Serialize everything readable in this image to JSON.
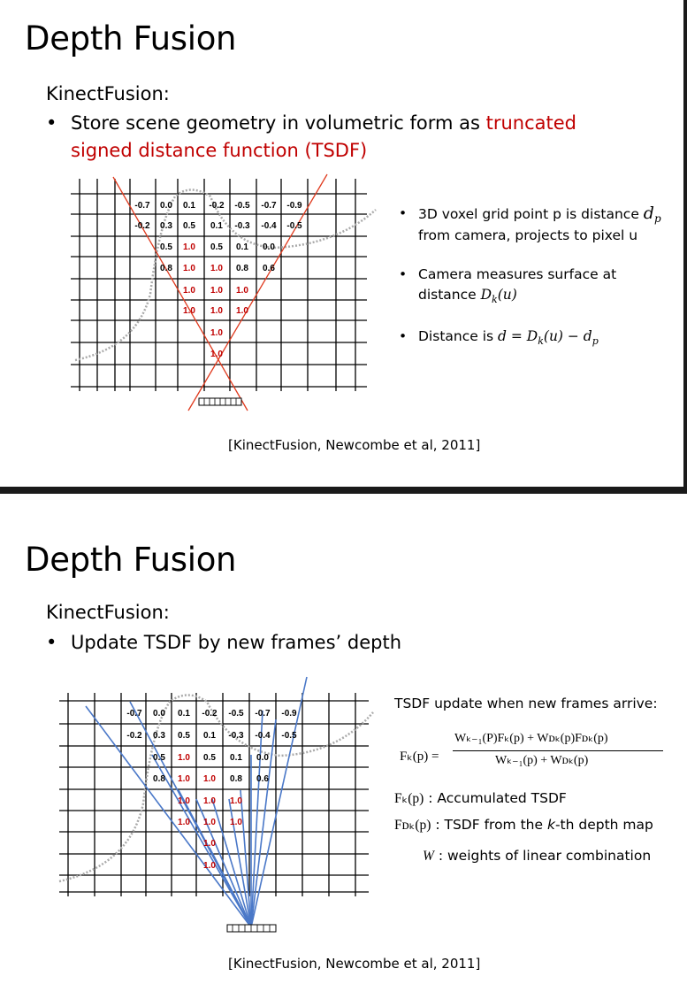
{
  "slide1": {
    "title": "Depth Fusion",
    "subtitle": "KinectFusion:",
    "bullet_prefix": "Store scene geometry in volumetric form as ",
    "bullet_red_1": "truncated",
    "bullet_red_2": "signed distance function (TSDF)",
    "right_bullets": [
      {
        "line1": "3D voxel grid point p is distance ",
        "math1": "d",
        "sub1": "p",
        "line2": "from camera, projects to pixel u"
      },
      {
        "line1": "Camera measures surface at",
        "line2_prefix": "distance ",
        "math2": "D",
        "sub2": "k",
        "math2_tail": "(u)"
      },
      {
        "prefix": "Distance is ",
        "math": "d = D",
        "sub": "k",
        "tail": "(u) − d",
        "sub2": "p"
      }
    ],
    "citation": "[KinectFusion, Newcombe et al, 2011]"
  },
  "slide2": {
    "title": "Depth Fusion",
    "subtitle": "KinectFusion:",
    "bullet": "Update TSDF by new frames’ depth",
    "update_header": "TSDF update when new frames arrive:",
    "equation_lhs": "Fₖ(p) =",
    "equation_num": "Wₖ₋₁(P)Fₖ(p) + Wᴅₖ(p)Fᴅₖ(p)",
    "equation_den": "Wₖ₋₁(p) + Wᴅₖ(p)",
    "legend": [
      {
        "sym": "Fₖ(p)",
        "desc": " : Accumulated TSDF"
      },
      {
        "sym": "Fᴅₖ(p)",
        "desc": " : TSDF from the ",
        "italic": "k",
        "desc2": "-th depth map"
      },
      {
        "sym": "W",
        "desc": " : weights of linear combination"
      }
    ],
    "citation": "[KinectFusion, Newcombe et al, 2011]"
  },
  "grid_values": {
    "row1": [
      "-0.7",
      "0.0",
      "0.1",
      "-0.2",
      "-0.5",
      "-0.7",
      "-0.9"
    ],
    "row2": [
      "-0.2",
      "0.3",
      "0.5",
      "0.1",
      "-0.3",
      "-0.4",
      "-0.5"
    ],
    "row3": [
      "0.5",
      "1.0",
      "0.5",
      "0.1",
      "0.0"
    ],
    "row4": [
      "0.8",
      "1.0",
      "1.0",
      "0.8",
      "0.6"
    ],
    "row5": [
      "1.0",
      "1.0",
      "1.0"
    ],
    "row6": [
      "1.0",
      "1.0",
      "1.0"
    ],
    "row7": [
      "1.0"
    ],
    "row8": [
      "1.0"
    ]
  },
  "colors": {
    "accent_red": "#c00000",
    "ray_red": "#e03a1e",
    "ray_blue": "#4a78c8",
    "divider": "#1a1a1a"
  }
}
